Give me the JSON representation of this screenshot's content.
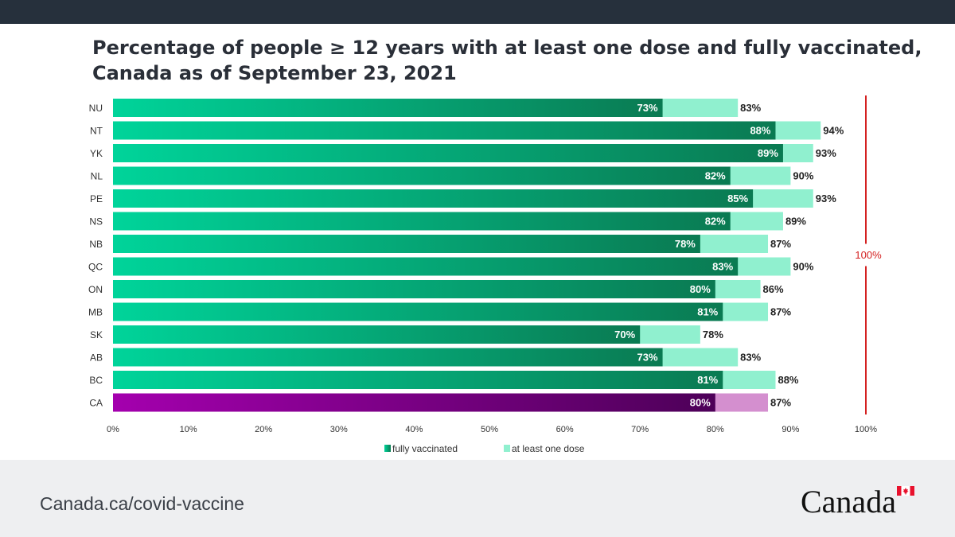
{
  "title_lines": [
    "Percentage of people ≥ 12 years with at least one dose and fully vaccinated,",
    "Canada as of September 23, 2021"
  ],
  "footer": {
    "url": "Canada.ca/covid-vaccine",
    "wordmark": "Canada"
  },
  "colors": {
    "fully_vaccinated_start": "#00d49a",
    "fully_vaccinated_end": "#0a7a52",
    "at_least_one_dose": "#90f0cf",
    "canada_fully_start": "#a400ae",
    "canada_fully_end": "#4d0058",
    "canada_one_dose": "#d48fcf",
    "target_line": "#d42020",
    "top_bar": "#26303c"
  },
  "chart_data": {
    "type": "bar",
    "orientation": "horizontal",
    "stacked_overlay": true,
    "categories": [
      "NU",
      "NT",
      "YK",
      "NL",
      "PE",
      "NS",
      "NB",
      "QC",
      "ON",
      "MB",
      "SK",
      "AB",
      "BC",
      "CA"
    ],
    "series": [
      {
        "name": "fully vaccinated",
        "values": [
          73,
          88,
          89,
          82,
          85,
          82,
          78,
          83,
          80,
          81,
          70,
          73,
          81,
          80
        ]
      },
      {
        "name": "at least one dose",
        "values": [
          83,
          94,
          93,
          90,
          93,
          89,
          87,
          90,
          86,
          87,
          78,
          83,
          88,
          87
        ]
      }
    ],
    "value_labels": {
      "fully vaccinated": [
        "73%",
        "88%",
        "89%",
        "82%",
        "85%",
        "82%",
        "78%",
        "83%",
        "80%",
        "81%",
        "70%",
        "73%",
        "81%",
        "80%"
      ],
      "at least one dose": [
        "83%",
        "94%",
        "93%",
        "90%",
        "93%",
        "89%",
        "87%",
        "90%",
        "86%",
        "87%",
        "78%",
        "83%",
        "88%",
        "87%"
      ]
    },
    "xlim": [
      0,
      100
    ],
    "x_ticks": [
      0,
      10,
      20,
      30,
      40,
      50,
      60,
      70,
      80,
      90,
      100
    ],
    "x_tick_labels": [
      "0%",
      "10%",
      "20%",
      "30%",
      "40%",
      "50%",
      "60%",
      "70%",
      "80%",
      "90%",
      "100%"
    ],
    "xlabel": "",
    "ylabel": "",
    "grid": false,
    "legend_position": "bottom-center",
    "reference_line": {
      "value": 100,
      "label": "100%"
    }
  }
}
